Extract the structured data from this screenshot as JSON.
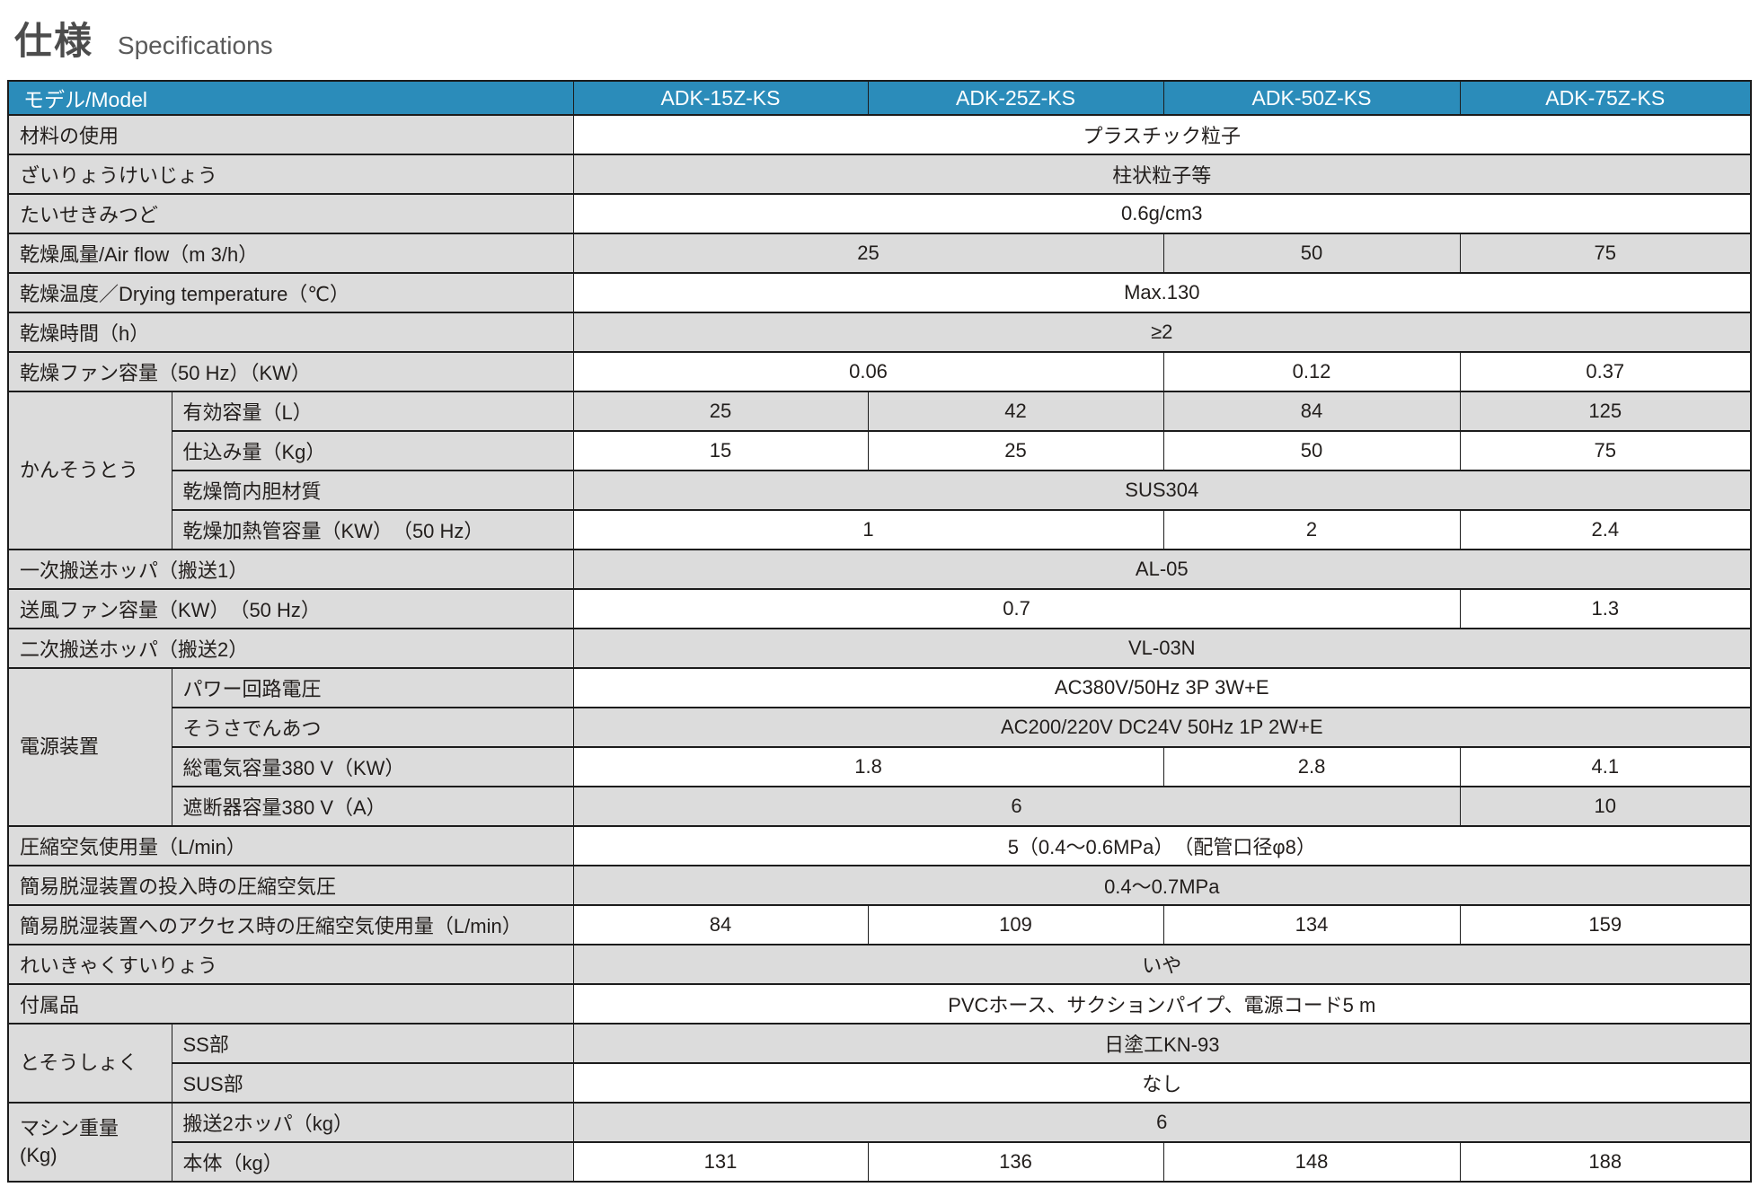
{
  "page": {
    "title_ja": "仕様",
    "title_en": "Specifications"
  },
  "colors": {
    "header_bg": "#2b8cba",
    "header_text": "#ffffff",
    "stripe_gray": "#dcdcdc",
    "row_white": "#ffffff",
    "border": "#1c1c1c",
    "body_text": "#221e1c",
    "title_ja": "#4c4c4c",
    "title_en": "#5a5a5a"
  },
  "table": {
    "header": {
      "model_label": "モデル/Model",
      "models": [
        "ADK-15Z-KS",
        "ADK-25Z-KS",
        "ADK-50Z-KS",
        "ADK-75Z-KS"
      ]
    },
    "rows": [
      {
        "label": "材料の使用",
        "cells": [
          {
            "text": "プラスチック粒子",
            "span": 4
          }
        ]
      },
      {
        "label": "ざいりょうけいじょう",
        "cells": [
          {
            "text": "柱状粒子等",
            "span": 4
          }
        ]
      },
      {
        "label": "たいせきみつど",
        "cells": [
          {
            "text": "0.6g/cm3",
            "span": 4
          }
        ]
      },
      {
        "label": "乾燥風量/Air flow（m 3/h）",
        "cells": [
          {
            "text": "25",
            "span": 2
          },
          {
            "text": "50",
            "span": 1
          },
          {
            "text": "75",
            "span": 1
          }
        ]
      },
      {
        "label": "乾燥温度／Drying temperature（℃）",
        "cells": [
          {
            "text": "Max.130",
            "span": 4
          }
        ]
      },
      {
        "label": "乾燥時間（h）",
        "cells": [
          {
            "text": "≥2",
            "span": 4
          }
        ]
      },
      {
        "label": "乾燥ファン容量（50 Hz）（KW）",
        "cells": [
          {
            "text": "0.06",
            "span": 2
          },
          {
            "text": "0.12",
            "span": 1
          },
          {
            "text": "0.37",
            "span": 1
          }
        ]
      },
      {
        "group": "かんそうとう",
        "group_span": 4,
        "indent": true,
        "label": "有効容量（L）",
        "cells": [
          {
            "text": "25",
            "span": 1
          },
          {
            "text": "42",
            "span": 1
          },
          {
            "text": "84",
            "span": 1
          },
          {
            "text": "125",
            "span": 1
          }
        ]
      },
      {
        "indent": true,
        "label": "仕込み量（Kg）",
        "cells": [
          {
            "text": "15",
            "span": 1
          },
          {
            "text": "25",
            "span": 1
          },
          {
            "text": "50",
            "span": 1
          },
          {
            "text": "75",
            "span": 1
          }
        ]
      },
      {
        "indent": true,
        "label": "乾燥筒内胆材質",
        "cells": [
          {
            "text": "SUS304",
            "span": 4
          }
        ]
      },
      {
        "indent": true,
        "label": "乾燥加熱管容量（KW）　（50 Hz）",
        "cells": [
          {
            "text": "1",
            "span": 2
          },
          {
            "text": "2",
            "span": 1
          },
          {
            "text": "2.4",
            "span": 1
          }
        ]
      },
      {
        "label": "一次搬送ホッパ（搬送1）",
        "cells": [
          {
            "text": "AL-05",
            "span": 4
          }
        ]
      },
      {
        "label": "送風ファン容量（KW）　（50 Hz）",
        "cells": [
          {
            "text": "0.7",
            "span": 3
          },
          {
            "text": "1.3",
            "span": 1
          }
        ]
      },
      {
        "label": "二次搬送ホッパ（搬送2）",
        "cells": [
          {
            "text": "VL-03N",
            "span": 4
          }
        ]
      },
      {
        "group": "電源装置",
        "group_span": 4,
        "indent": true,
        "label": "パワー回路電圧",
        "cells": [
          {
            "text": "AC380V/50Hz 3P 3W+E",
            "span": 4
          }
        ]
      },
      {
        "indent": true,
        "label": "そうさでんあつ",
        "cells": [
          {
            "text": "AC200/220V DC24V 50Hz 1P 2W+E",
            "span": 4
          }
        ]
      },
      {
        "indent": true,
        "label": "総電気容量380 V（KW）",
        "cells": [
          {
            "text": "1.8",
            "span": 2
          },
          {
            "text": "2.8",
            "span": 1
          },
          {
            "text": "4.1",
            "span": 1
          }
        ]
      },
      {
        "indent": true,
        "label": "遮断器容量380 V（A）",
        "cells": [
          {
            "text": "6",
            "span": 3
          },
          {
            "text": "10",
            "span": 1
          }
        ]
      },
      {
        "label": "圧縮空気使用量（L/min）",
        "cells": [
          {
            "text": "5（0.4～0.6MPa）　（配管口径φ8）",
            "span": 4
          }
        ]
      },
      {
        "label": "簡易脱湿装置の投入時の圧縮空気圧",
        "cells": [
          {
            "text": "0.4～0.7MPa",
            "span": 4
          }
        ]
      },
      {
        "label": "簡易脱湿装置へのアクセス時の圧縮空気使用量（L/min）",
        "cells": [
          {
            "text": "84",
            "span": 1
          },
          {
            "text": "109",
            "span": 1
          },
          {
            "text": "134",
            "span": 1
          },
          {
            "text": "159",
            "span": 1
          }
        ]
      },
      {
        "label": "れいきゃくすいりょう",
        "cells": [
          {
            "text": "いや",
            "span": 4
          }
        ]
      },
      {
        "label": "付属品",
        "cells": [
          {
            "text": "PVCホース、サクションパイプ、電源コード5 m",
            "span": 4
          }
        ]
      },
      {
        "group": "とそうしょく",
        "group_span": 2,
        "indent": true,
        "label": "SS部",
        "cells": [
          {
            "text": "日塗工KN-93",
            "span": 4
          }
        ]
      },
      {
        "indent": true,
        "label": "SUS部",
        "cells": [
          {
            "text": "なし",
            "span": 4
          }
        ]
      },
      {
        "group": "マシン重量\n(Kg)",
        "group_span": 2,
        "indent": true,
        "label": "搬送2ホッパ（kg）",
        "cells": [
          {
            "text": "6",
            "span": 4
          }
        ]
      },
      {
        "indent": true,
        "label": "本体（kg）",
        "cells": [
          {
            "text": "131",
            "span": 1
          },
          {
            "text": "136",
            "span": 1
          },
          {
            "text": "148",
            "span": 1
          },
          {
            "text": "188",
            "span": 1
          }
        ]
      }
    ]
  }
}
